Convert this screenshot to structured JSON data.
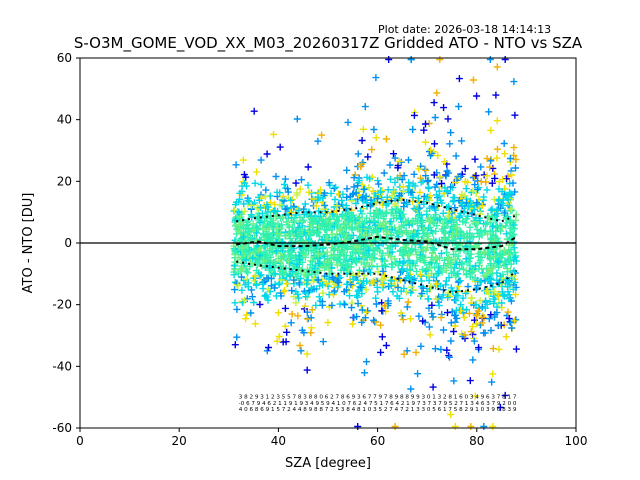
{
  "header": {
    "plot_date": "Plot date: 2026-03-18 14:14:13"
  },
  "chart_data": {
    "type": "scatter",
    "title": "S-O3M_GOME_VOD_XX_M03_20260317Z Gridded ATO - NTO vs SZA",
    "xlabel": "SZA [degree]",
    "ylabel": "ATO - NTO [DU]",
    "xlim": [
      0,
      100
    ],
    "ylim": [
      -60,
      60
    ],
    "xticks": [
      0,
      20,
      40,
      60,
      80,
      100
    ],
    "yticks": [
      -60,
      -40,
      -20,
      0,
      20,
      40,
      60
    ],
    "grid": false,
    "legend": "none",
    "marker": "plus",
    "x_range_of_points": [
      31,
      88
    ],
    "color_scale": [
      "#0000e0",
      "#0090f0",
      "#00d8e8",
      "#30f0b0",
      "#70f080",
      "#c8f040",
      "#f0e000",
      "#f0b000"
    ],
    "zero_line": 0,
    "mean_curve": [
      {
        "x": 31.5,
        "y": -0.5
      },
      {
        "x": 36,
        "y": 0.5
      },
      {
        "x": 40,
        "y": -1
      },
      {
        "x": 45,
        "y": -1
      },
      {
        "x": 50,
        "y": -0.5
      },
      {
        "x": 55,
        "y": 0.5
      },
      {
        "x": 60,
        "y": 2
      },
      {
        "x": 65,
        "y": 1
      },
      {
        "x": 70,
        "y": 0.5
      },
      {
        "x": 75,
        "y": -2
      },
      {
        "x": 80,
        "y": -2
      },
      {
        "x": 85,
        "y": -1
      },
      {
        "x": 88,
        "y": 2
      }
    ],
    "upper_band": [
      {
        "x": 31.5,
        "y": 7
      },
      {
        "x": 35,
        "y": 8
      },
      {
        "x": 40,
        "y": 9
      },
      {
        "x": 45,
        "y": 10
      },
      {
        "x": 50,
        "y": 10
      },
      {
        "x": 55,
        "y": 11
      },
      {
        "x": 60,
        "y": 13
      },
      {
        "x": 65,
        "y": 14
      },
      {
        "x": 70,
        "y": 13
      },
      {
        "x": 75,
        "y": 11
      },
      {
        "x": 80,
        "y": 9
      },
      {
        "x": 85,
        "y": 7
      },
      {
        "x": 88,
        "y": 9
      }
    ],
    "lower_band": [
      {
        "x": 31.5,
        "y": -6
      },
      {
        "x": 35,
        "y": -7
      },
      {
        "x": 40,
        "y": -8
      },
      {
        "x": 45,
        "y": -9
      },
      {
        "x": 50,
        "y": -10
      },
      {
        "x": 55,
        "y": -10
      },
      {
        "x": 60,
        "y": -10
      },
      {
        "x": 65,
        "y": -12
      },
      {
        "x": 70,
        "y": -14
      },
      {
        "x": 75,
        "y": -16
      },
      {
        "x": 80,
        "y": -15
      },
      {
        "x": 85,
        "y": -13
      },
      {
        "x": 88,
        "y": -9
      }
    ],
    "annotation_rows": [
      "3 8 2 9 3 1 2 3 5 5 7 8 3 8 8 0 6 2 7 8 6 9 3 6 7 7 9 7 8 9 8 8 9 9 3 0 1 3 2 8 1 6 0 3 4 9 6 3 7 8 1 7",
      "-0 6 7 9 4 6 2 1 1 9 1 9 3 4 9 5 9 4 1 0 7 6 2 4 7 5 1 7 6 4 2 1 9 7 3 7 3 7 9 5 2 7 1 3 4 6 3 7 9 2 0 0",
      "4 0 6 8 6 9 1 5 7 2 4 4 8 9 8 8 7 2 5 3 8 4 8 1 0 3 5 2 7 4 7 2 1 3 3 0 5 6 1 7 5 8 2 9 1 0 3 9 6 8 3 9"
    ]
  }
}
